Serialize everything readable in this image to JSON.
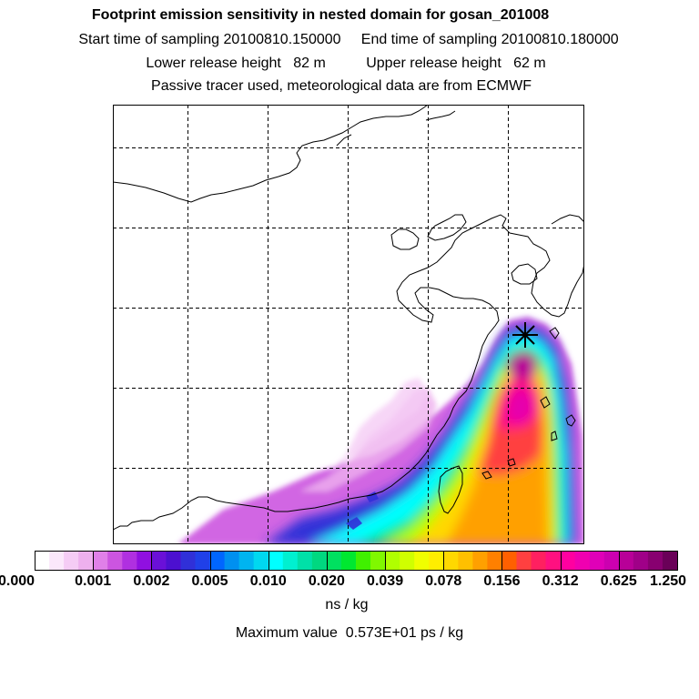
{
  "header": {
    "title": "Footprint emission sensitivity in nested domain for gosan_201008",
    "sampling": "Start time of sampling 20100810.150000     End time of sampling 20100810.180000",
    "release": "Lower release height   82 m          Upper release height   62 m",
    "tracer": "Passive tracer used, meteorological data are from ECMWF"
  },
  "colorbar": {
    "labels": [
      "0.000",
      "0.001",
      "0.002",
      "0.005",
      "0.010",
      "0.020",
      "0.039",
      "0.078",
      "0.156",
      "0.312",
      "0.625",
      "1.250"
    ],
    "colors": [
      "#ffffff",
      "#fbe8fb",
      "#f5ccf5",
      "#eeb0ee",
      "#e080e8",
      "#cc55e0",
      "#b030e0",
      "#9010e0",
      "#6a10d8",
      "#4c10d0",
      "#3030d8",
      "#2040e8",
      "#0066ff",
      "#0090f0",
      "#00b4f0",
      "#00d8f0",
      "#00ffff",
      "#00f0d0",
      "#00e0a8",
      "#00d880",
      "#00e060",
      "#00e830",
      "#40f000",
      "#80f800",
      "#b0ff00",
      "#d0ff00",
      "#f0ff00",
      "#ffee00",
      "#ffd800",
      "#ffc000",
      "#ffa000",
      "#ff8000",
      "#ff6000",
      "#ff4040",
      "#ff2060",
      "#ff1080",
      "#ff00a0",
      "#f000b0",
      "#e000b8",
      "#cc00b0",
      "#b80098",
      "#a00088",
      "#880070",
      "#6a0058"
    ]
  },
  "units": "ns / kg",
  "max_value_line": "Maximum value  0.573E+01 ps / kg"
}
